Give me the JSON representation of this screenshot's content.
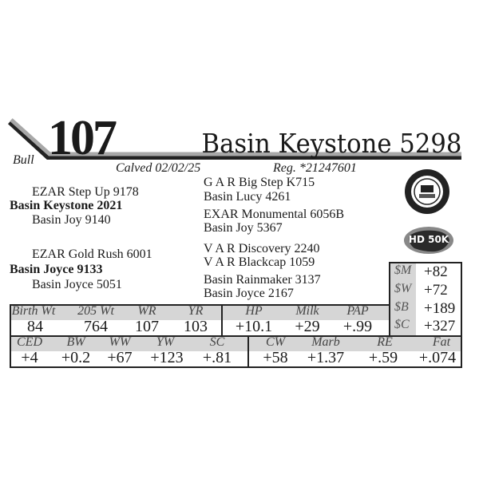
{
  "lot": {
    "number": "107",
    "name": "Basin Keystone 5298",
    "type": "Bull",
    "calved": "Calved 02/02/25",
    "reg": "Reg. *21247601"
  },
  "pedigree": {
    "sire_sire": "EZAR Step Up 9178",
    "sire": "Basin Keystone 2021",
    "sire_dam": "Basin Joy 9140",
    "dam_sire": "EZAR Gold Rush 6001",
    "dam": "Basin Joyce 9133",
    "dam_dam": "Basin Joyce 5051",
    "right": [
      "G A R Big Step K715",
      "Basin Lucy 4261",
      "EXAR Monumental 6056B",
      "Basin Joy 5367",
      "V A R Discovery 2240",
      "V A R Blackcap 1059",
      "Basin Rainmaker 3137",
      "Basin Joyce 2167"
    ]
  },
  "badges": {
    "hd50k": "HD 50K"
  },
  "indexes": [
    {
      "label": "$M",
      "value": "+82"
    },
    {
      "label": "$W",
      "value": "+72"
    },
    {
      "label": "$B",
      "value": "+189"
    },
    {
      "label": "$C",
      "value": "+327"
    }
  ],
  "performance": {
    "headers": [
      "Birth Wt",
      "205 Wt",
      "WR",
      "YR",
      "HP",
      "Milk",
      "PAP"
    ],
    "values": [
      "84",
      "764",
      "107",
      "103",
      "+10.1",
      "+29",
      "+.99"
    ]
  },
  "epds": {
    "headers": [
      "CED",
      "BW",
      "WW",
      "YW",
      "SC",
      "CW",
      "Marb",
      "RE",
      "Fat"
    ],
    "values": [
      "+4",
      "+0.2",
      "+67",
      "+123",
      "+.81",
      "+58",
      "+1.37",
      "+.59",
      "+.074"
    ]
  },
  "colors": {
    "header_gray": "#d6d6d6",
    "bar_gray": "#a8a8a8",
    "text": "#1a1a1a"
  }
}
